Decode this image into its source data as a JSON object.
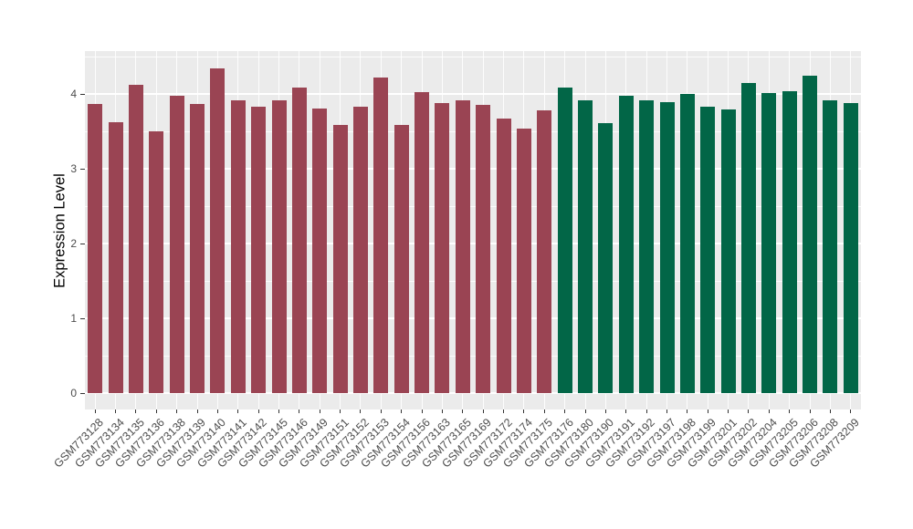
{
  "chart_data": {
    "type": "bar",
    "title": "",
    "xlabel": "",
    "ylabel": "Expression Level",
    "categories": [
      "GSM773128",
      "GSM773134",
      "GSM773135",
      "GSM773136",
      "GSM773138",
      "GSM773139",
      "GSM773140",
      "GSM773141",
      "GSM773142",
      "GSM773145",
      "GSM773146",
      "GSM773149",
      "GSM773151",
      "GSM773152",
      "GSM773153",
      "GSM773154",
      "GSM773156",
      "GSM773163",
      "GSM773165",
      "GSM773169",
      "GSM773172",
      "GSM773174",
      "GSM773175",
      "GSM773176",
      "GSM773180",
      "GSM773190",
      "GSM773191",
      "GSM773192",
      "GSM773197",
      "GSM773198",
      "GSM773199",
      "GSM773201",
      "GSM773202",
      "GSM773204",
      "GSM773205",
      "GSM773206",
      "GSM773208",
      "GSM773209"
    ],
    "values": [
      3.86,
      3.62,
      4.12,
      3.5,
      3.97,
      3.86,
      4.34,
      3.91,
      3.83,
      3.91,
      4.09,
      3.8,
      3.58,
      3.83,
      4.22,
      3.59,
      4.02,
      3.88,
      3.91,
      3.85,
      3.67,
      3.54,
      3.78,
      4.09,
      3.91,
      3.61,
      3.98,
      3.91,
      3.89,
      4.0,
      3.83,
      3.79,
      4.15,
      4.01,
      4.04,
      4.24,
      3.91,
      3.88
    ],
    "groups": [
      "group1",
      "group1",
      "group1",
      "group1",
      "group1",
      "group1",
      "group1",
      "group1",
      "group1",
      "group1",
      "group1",
      "group1",
      "group1",
      "group1",
      "group1",
      "group1",
      "group1",
      "group1",
      "group1",
      "group1",
      "group1",
      "group1",
      "group1",
      "group2",
      "group2",
      "group2",
      "group2",
      "group2",
      "group2",
      "group2",
      "group2",
      "group2",
      "group2",
      "group2",
      "group2",
      "group2",
      "group2",
      "group2"
    ],
    "group_colors": {
      "group1": "#9a4453",
      "group2": "#026647"
    },
    "yticks": [
      0,
      1,
      2,
      3,
      4
    ],
    "minor_yticks": [
      0.5,
      1.5,
      2.5,
      3.5,
      4.5
    ],
    "ylim": [
      0,
      4.57
    ],
    "grid": true,
    "legend_position": "none",
    "panel_background": "#ebebeb",
    "grid_color": "#ffffff",
    "axis_text_color": "#4d4d4d"
  }
}
